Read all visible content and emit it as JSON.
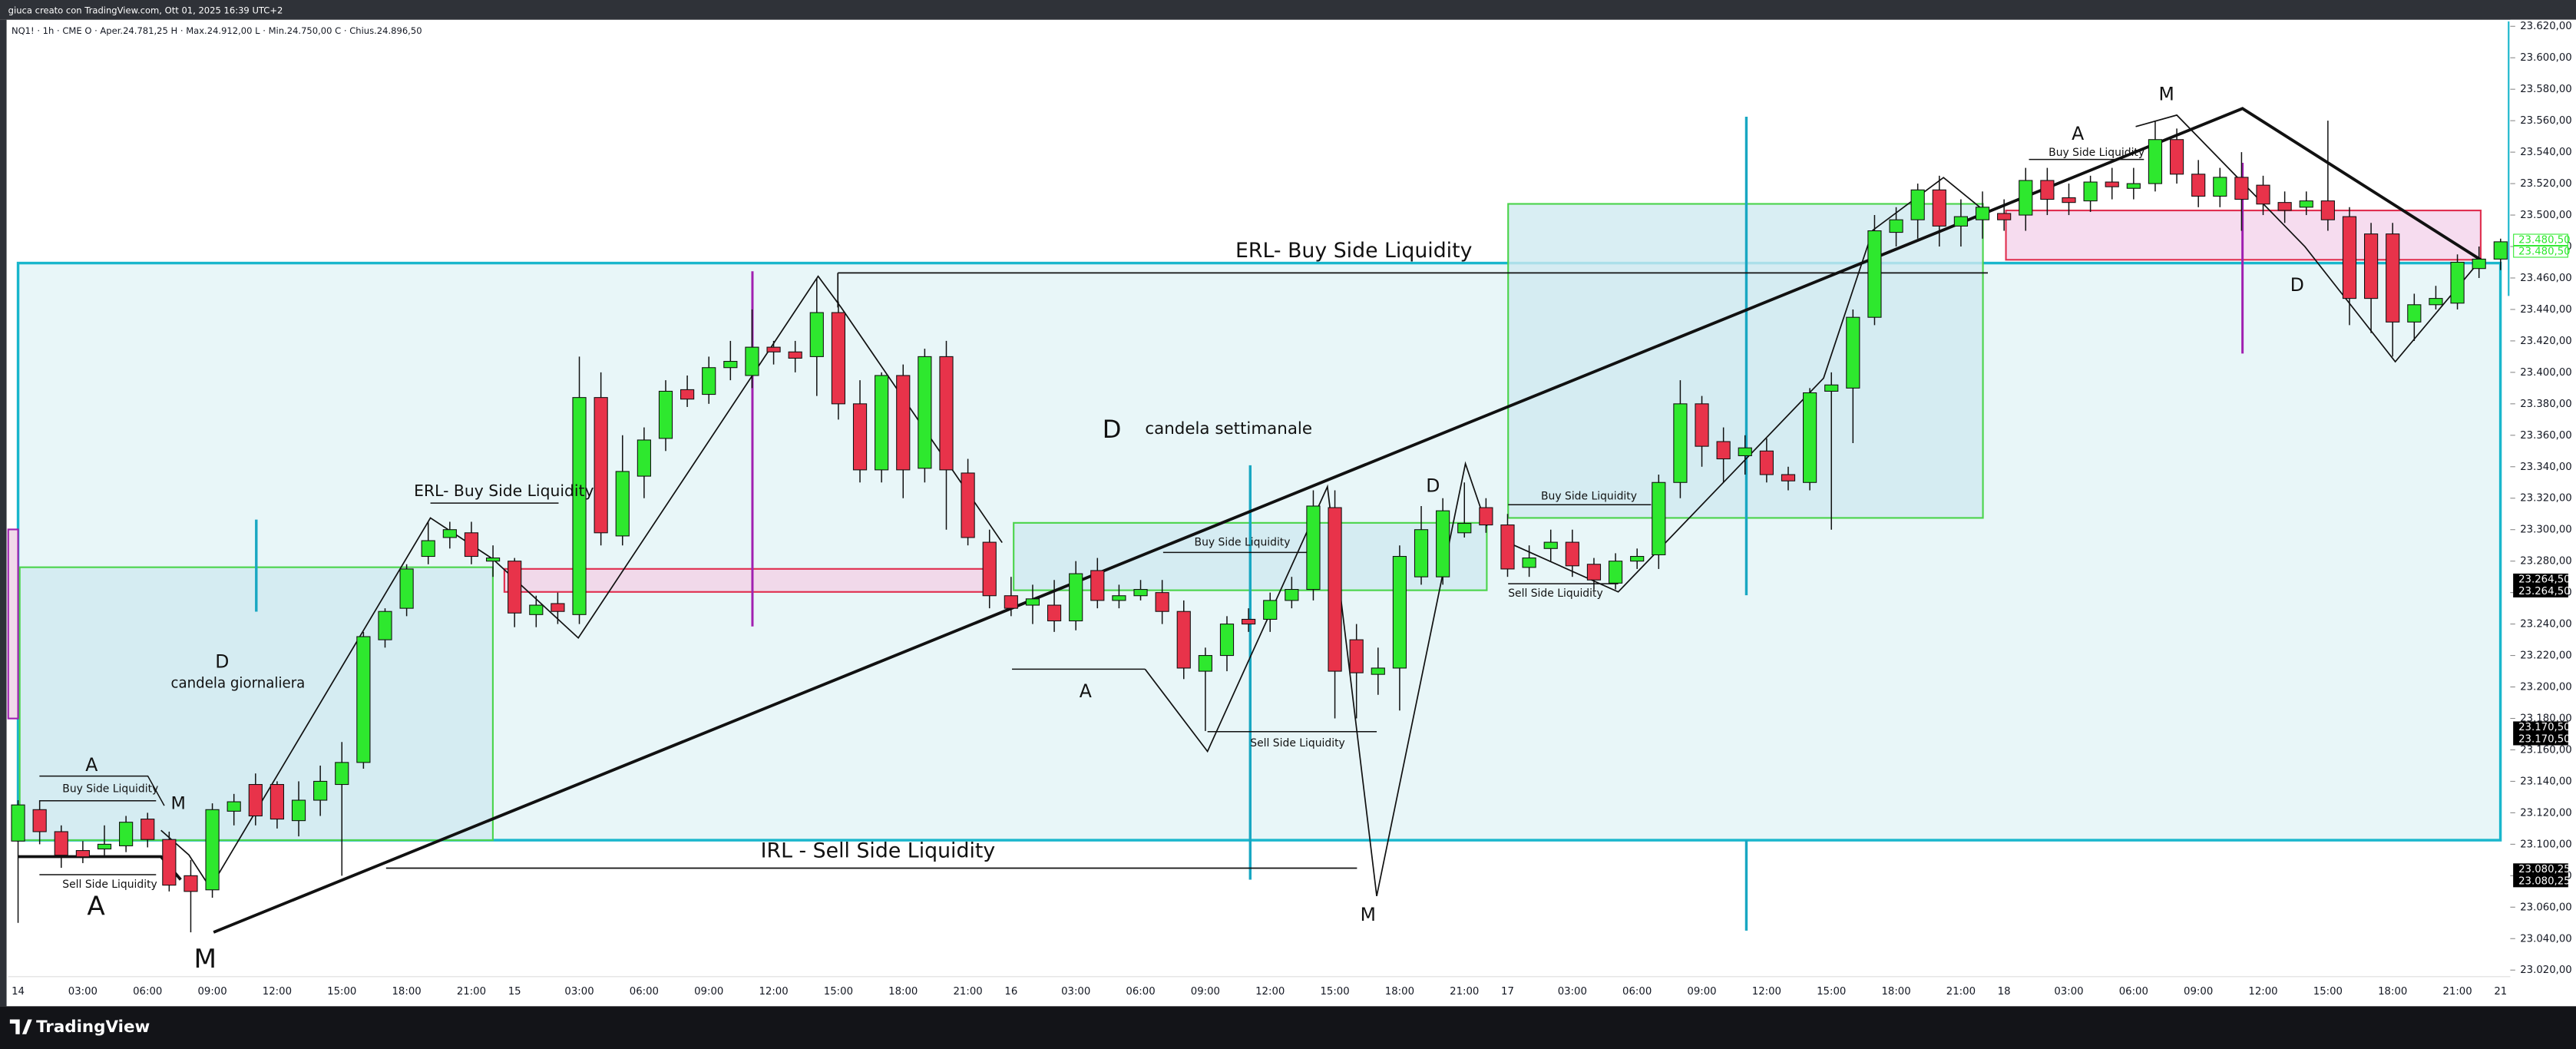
{
  "header": {
    "credit": "giuca creato con TradingView.com, Ott 01, 2025 16:39 UTC+2",
    "symbol_info": "NQ1! · 1h · CME  O · Aper.24.781,25  H · Max.24.912,00  L · Min.24.750,00  C · Chius.24.896,50"
  },
  "footer": {
    "brand": "TradingView"
  },
  "chart_data": {
    "type": "candlestick",
    "up_color": "#2ee82e",
    "down_color": "#e8334a",
    "categories": [
      "14",
      null,
      null,
      "03:00",
      null,
      null,
      "06:00",
      null,
      null,
      "09:00",
      null,
      null,
      "12:00",
      null,
      null,
      "15:00",
      null,
      null,
      "18:00",
      null,
      null,
      "21:00",
      null,
      "15",
      null,
      null,
      "03:00",
      null,
      null,
      "06:00",
      null,
      null,
      "09:00",
      null,
      null,
      "12:00",
      null,
      null,
      "15:00",
      null,
      null,
      "18:00",
      null,
      null,
      "21:00",
      null,
      "16",
      null,
      null,
      "03:00",
      null,
      null,
      "06:00",
      null,
      null,
      "09:00",
      null,
      null,
      "12:00",
      null,
      null,
      "15:00",
      null,
      null,
      "18:00",
      null,
      null,
      "21:00",
      null,
      "17",
      null,
      null,
      "03:00",
      null,
      null,
      "06:00",
      null,
      null,
      "09:00",
      null,
      null,
      "12:00",
      null,
      null,
      "15:00",
      null,
      null,
      "18:00",
      null,
      null,
      "21:00",
      null,
      "18",
      null,
      null,
      "03:00",
      null,
      null,
      "06:00",
      null,
      null,
      "09:00",
      null,
      null,
      "12:00",
      null,
      null,
      "15:00",
      null,
      null,
      "18:00",
      null,
      null,
      "21:00",
      null,
      "21"
    ],
    "open": [
      23102,
      23122,
      23108,
      23096,
      23097,
      23099,
      23116,
      23103,
      23080,
      23071,
      23121,
      23138,
      23138,
      23115,
      23128,
      23138,
      23152,
      23230,
      23250,
      23283,
      23295,
      23298,
      23280,
      23280,
      23246,
      23253,
      23246,
      23384,
      23296,
      23334,
      23358,
      23389,
      23386,
      23403,
      23398,
      23416,
      23413,
      23410,
      23438,
      23380,
      23338,
      23398,
      23339,
      23410,
      23336,
      23292,
      23258,
      23252,
      23252,
      23242,
      23274,
      23255,
      23258,
      23260,
      23248,
      23210,
      23220,
      23243,
      23243,
      23255,
      23262,
      23314,
      23230,
      23208,
      23212,
      23270,
      23270,
      23298,
      23314,
      23303,
      23276,
      23288,
      23292,
      23278,
      23266,
      23280,
      23284,
      23330,
      23380,
      23356,
      23347,
      23350,
      23335,
      23330,
      23388,
      23390,
      23435,
      23489,
      23497,
      23516,
      23493,
      23497,
      23501,
      23500,
      23522,
      23511,
      23509,
      23521,
      23517,
      23520,
      23548,
      23526,
      23512,
      23524,
      23519,
      23508,
      23505,
      23509,
      23499,
      23488,
      23488,
      23432,
      23443,
      23444,
      23466,
      23472
    ],
    "high": [
      23128,
      23128,
      23112,
      23102,
      23112,
      23118,
      23120,
      23108,
      23090,
      23126,
      23132,
      23145,
      23140,
      23140,
      23150,
      23165,
      23235,
      23250,
      23278,
      23305,
      23305,
      23305,
      23290,
      23282,
      23258,
      23260,
      23410,
      23400,
      23360,
      23365,
      23395,
      23398,
      23410,
      23420,
      23440,
      23420,
      23420,
      23460,
      23445,
      23395,
      23400,
      23405,
      23415,
      23420,
      23345,
      23300,
      23270,
      23265,
      23268,
      23280,
      23282,
      23265,
      23268,
      23268,
      23255,
      23225,
      23245,
      23250,
      23260,
      23270,
      23325,
      23325,
      23240,
      23225,
      23290,
      23315,
      23320,
      23330,
      23320,
      23310,
      23290,
      23300,
      23300,
      23282,
      23285,
      23288,
      23335,
      23395,
      23385,
      23365,
      23360,
      23358,
      23340,
      23390,
      23400,
      23440,
      23500,
      23505,
      23520,
      23525,
      23510,
      23515,
      23510,
      23530,
      23530,
      23520,
      23525,
      23530,
      23530,
      23560,
      23555,
      23535,
      23530,
      23540,
      23525,
      23515,
      23515,
      23560,
      23505,
      23495,
      23495,
      23450,
      23455,
      23475,
      23480,
      23485
    ],
    "low": [
      23050,
      23100,
      23085,
      23088,
      23092,
      23095,
      23098,
      23070,
      23044,
      23066,
      23112,
      23112,
      23110,
      23105,
      23118,
      23080,
      23148,
      23225,
      23245,
      23278,
      23288,
      23278,
      23270,
      23238,
      23238,
      23240,
      23240,
      23290,
      23290,
      23320,
      23350,
      23378,
      23380,
      23395,
      23390,
      23405,
      23400,
      23385,
      23370,
      23330,
      23330,
      23320,
      23330,
      23300,
      23290,
      23250,
      23245,
      23240,
      23235,
      23236,
      23250,
      23250,
      23255,
      23240,
      23205,
      23172,
      23210,
      23235,
      23235,
      23250,
      23255,
      23180,
      23180,
      23195,
      23185,
      23265,
      23265,
      23295,
      23298,
      23270,
      23270,
      23280,
      23270,
      23262,
      23262,
      23275,
      23275,
      23320,
      23340,
      23330,
      23335,
      23330,
      23325,
      23325,
      23300,
      23355,
      23430,
      23480,
      23485,
      23480,
      23480,
      23485,
      23490,
      23490,
      23500,
      23500,
      23502,
      23510,
      23510,
      23515,
      23520,
      23505,
      23505,
      23490,
      23500,
      23495,
      23500,
      23490,
      23430,
      23425,
      23410,
      23420,
      23440,
      23440,
      23460,
      23465
    ],
    "close": [
      23125,
      23108,
      23093,
      23092,
      23100,
      23114,
      23103,
      23074,
      23070,
      23122,
      23127,
      23118,
      23116,
      23128,
      23140,
      23152,
      23232,
      23248,
      23275,
      23293,
      23300,
      23283,
      23282,
      23247,
      23252,
      23248,
      23384,
      23298,
      23337,
      23357,
      23388,
      23383,
      23403,
      23407,
      23416,
      23413,
      23409,
      23438,
      23380,
      23338,
      23398,
      23338,
      23410,
      23338,
      23295,
      23258,
      23250,
      23256,
      23242,
      23272,
      23255,
      23258,
      23262,
      23248,
      23212,
      23220,
      23240,
      23240,
      23255,
      23262,
      23315,
      23210,
      23209,
      23212,
      23283,
      23300,
      23312,
      23304,
      23303,
      23275,
      23282,
      23292,
      23277,
      23268,
      23280,
      23283,
      23330,
      23380,
      23353,
      23345,
      23352,
      23335,
      23331,
      23387,
      23392,
      23435,
      23490,
      23497,
      23516,
      23493,
      23499,
      23505,
      23497,
      23522,
      23510,
      23508,
      23521,
      23518,
      23520,
      23548,
      23526,
      23512,
      23524,
      23510,
      23507,
      23503,
      23509,
      23497,
      23447,
      23447,
      23432,
      23443,
      23447,
      23470,
      23472,
      23483
    ],
    "ylim": [
      23020,
      23620
    ],
    "yticks": [
      {
        "value": 23020,
        "label": "23.020,00"
      },
      {
        "value": 23040,
        "label": "23.040,00"
      },
      {
        "value": 23060,
        "label": "23.060,00"
      },
      {
        "value": 23080,
        "label": "23.080,00"
      },
      {
        "value": 23100,
        "label": "23.100,00"
      },
      {
        "value": 23120,
        "label": "23.120,00"
      },
      {
        "value": 23140,
        "label": "23.140,00"
      },
      {
        "value": 23160,
        "label": "23.160,00"
      },
      {
        "value": 23180,
        "label": "23.180,00"
      },
      {
        "value": 23200,
        "label": "23.200,00"
      },
      {
        "value": 23220,
        "label": "23.220,00"
      },
      {
        "value": 23240,
        "label": "23.240,00"
      },
      {
        "value": 23260,
        "label": "23.260,00"
      },
      {
        "value": 23280,
        "label": "23.280,00"
      },
      {
        "value": 23300,
        "label": "23.300,00"
      },
      {
        "value": 23320,
        "label": "23.320,00"
      },
      {
        "value": 23340,
        "label": "23.340,00"
      },
      {
        "value": 23360,
        "label": "23.360,00"
      },
      {
        "value": 23380,
        "label": "23.380,00"
      },
      {
        "value": 23400,
        "label": "23.400,00"
      },
      {
        "value": 23420,
        "label": "23.420,00"
      },
      {
        "value": 23440,
        "label": "23.440,00"
      },
      {
        "value": 23460,
        "label": "23.460,00"
      },
      {
        "value": 23480,
        "label": "23.480,00"
      },
      {
        "value": 23500,
        "label": "23.500,00"
      },
      {
        "value": 23520,
        "label": "23.520,00"
      },
      {
        "value": 23540,
        "label": "23.540,00"
      },
      {
        "value": 23560,
        "label": "23.560,00"
      },
      {
        "value": 23580,
        "label": "23.580,00"
      },
      {
        "value": 23600,
        "label": "23.600,00"
      },
      {
        "value": 23620,
        "label": "23.620,00"
      }
    ],
    "grid": false,
    "price_tags": [
      {
        "value": 23480.5,
        "label": "23.480,50",
        "color": "#2ee82e"
      },
      {
        "value": 23264.5,
        "label": "23.264,50",
        "color": "#000000"
      },
      {
        "value": 23170.5,
        "label": "23.170,50",
        "color": "#000000"
      },
      {
        "value": 23080.25,
        "label": "23.080,25",
        "color": "#000000"
      }
    ],
    "annotations": [
      "ERL- Buy Side Liquidity",
      "D",
      "candela settimanale",
      "ERL- Buy Side Liquidity",
      "D",
      "candela giornaliera",
      "A",
      "Buy Side Liquidity",
      "M",
      "Sell Side Liquidity",
      "A",
      "M",
      "IRL - Sell Side Liquidity",
      "Buy Side Liquidity",
      "A",
      "Sell Side Liquidity",
      "M",
      "D",
      "Buy Side Liquidity",
      "Sell Side Liquidity",
      "A",
      "Buy Side Liquidity",
      "M",
      "D"
    ]
  }
}
